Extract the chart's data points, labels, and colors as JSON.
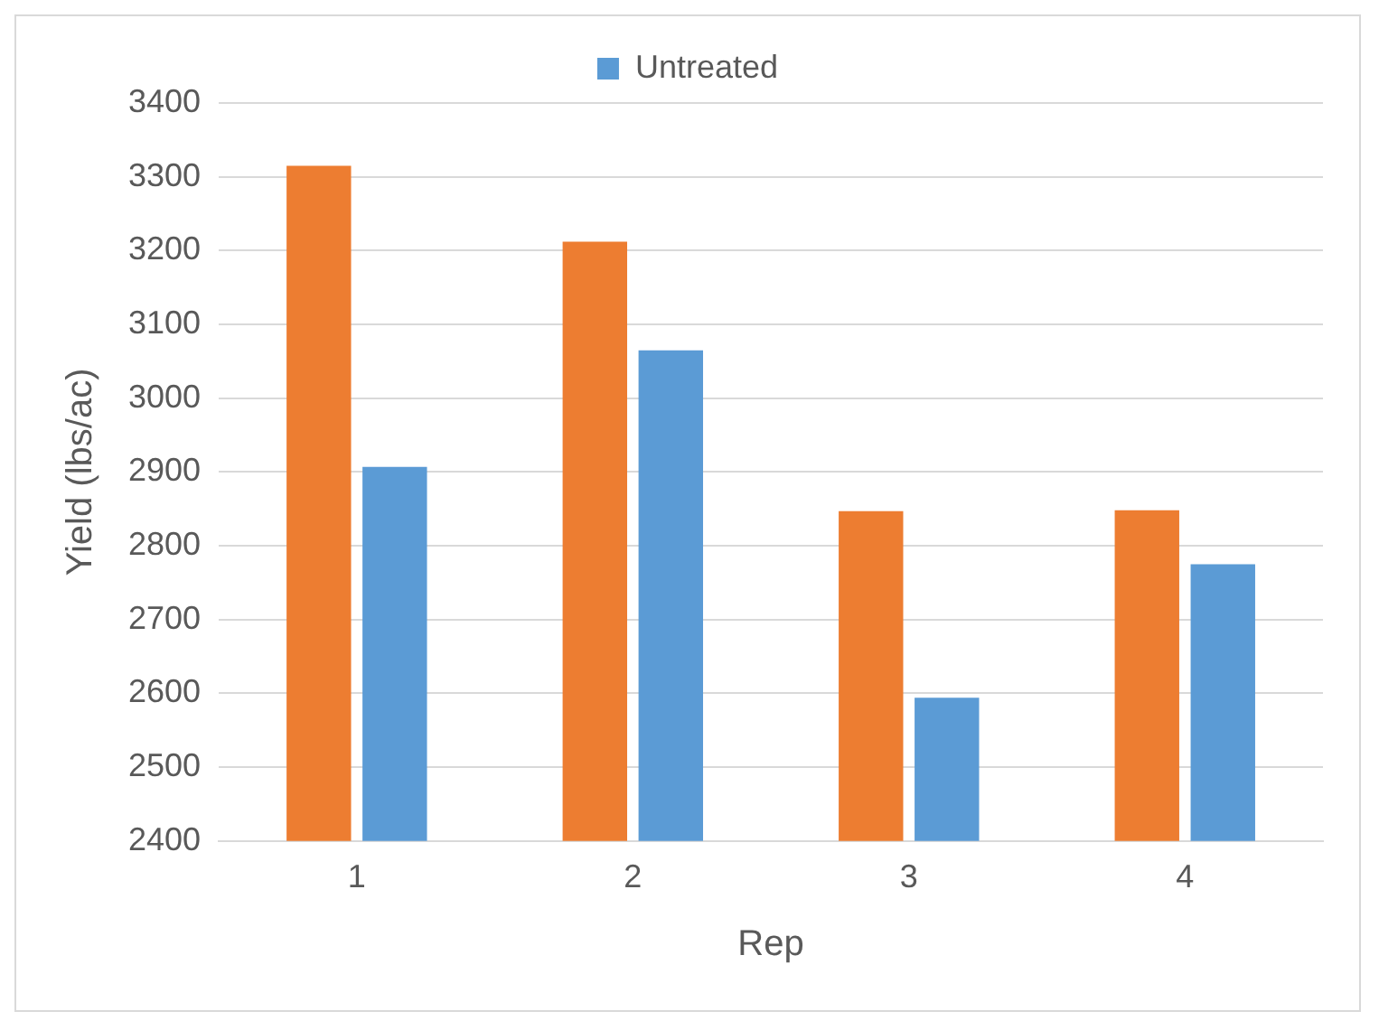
{
  "chart_data": {
    "type": "bar",
    "xlabel": "Rep",
    "ylabel": "Yield (lbs/ac)",
    "categories": [
      "1",
      "2",
      "3",
      "4"
    ],
    "series": [
      {
        "color": "#ed7d31",
        "values": [
          3315,
          3212,
          2847,
          2848
        ]
      },
      {
        "name": "Untreated",
        "color": "#5b9bd5",
        "values": [
          2907,
          3065,
          2594,
          2775
        ]
      }
    ],
    "ylim": [
      2400,
      3400
    ],
    "yticks": [
      2400,
      2500,
      2600,
      2700,
      2800,
      2900,
      3000,
      3100,
      3200,
      3300,
      3400
    ],
    "grid": "y",
    "legend": "top"
  }
}
